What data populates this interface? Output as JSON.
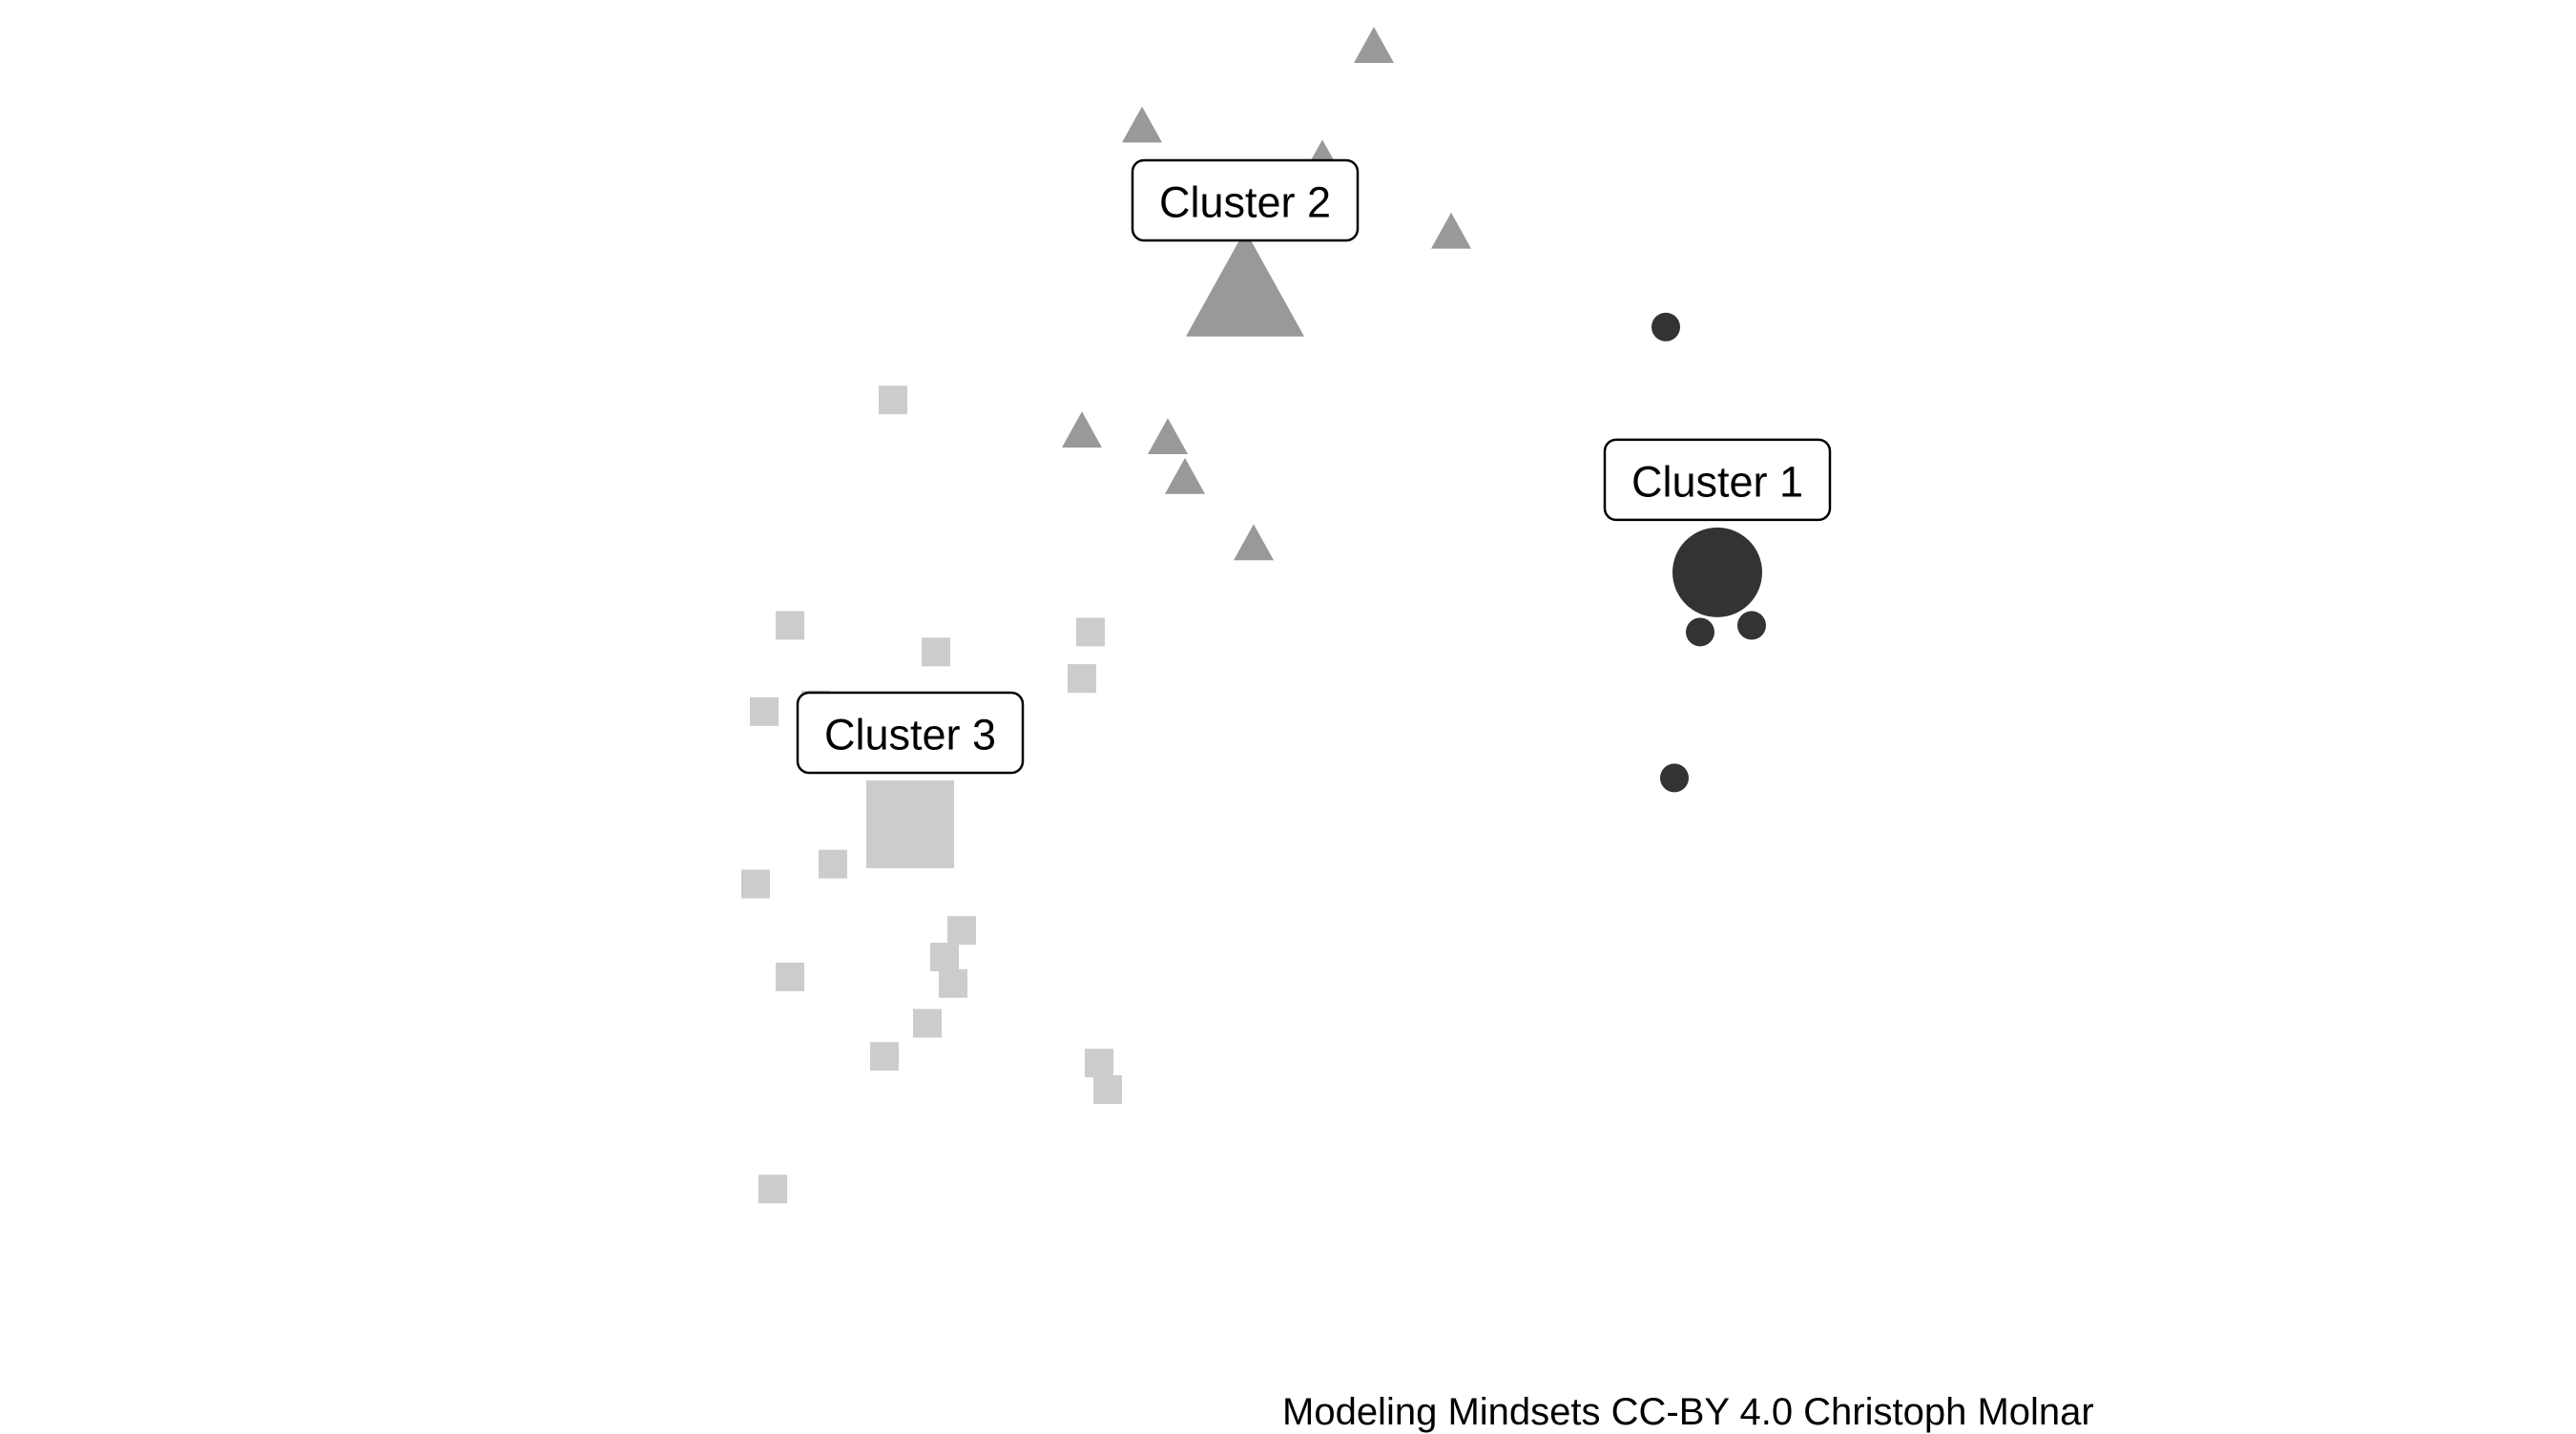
{
  "chart_data": {
    "type": "scatter",
    "title": "",
    "xlabel": "",
    "ylabel": "",
    "xlim": [
      0,
      100
    ],
    "ylim": [
      0,
      100
    ],
    "grid": false,
    "axes_visible": false,
    "legend": "none",
    "series": [
      {
        "label": "Cluster 1",
        "marker": "circle",
        "color": "#333333",
        "centroid": {
          "x": 75.0,
          "y": 59.0
        },
        "points": [
          {
            "x": 72.0,
            "y": 77.5
          },
          {
            "x": 79.0,
            "y": 67.0
          },
          {
            "x": 77.0,
            "y": 55.0
          },
          {
            "x": 74.0,
            "y": 54.5
          },
          {
            "x": 72.5,
            "y": 43.5
          }
        ]
      },
      {
        "label": "Cluster 2",
        "marker": "triangle",
        "color": "#999999",
        "centroid": {
          "x": 47.5,
          "y": 80.0
        },
        "points": [
          {
            "x": 55.0,
            "y": 98.5
          },
          {
            "x": 41.5,
            "y": 92.5
          },
          {
            "x": 52.0,
            "y": 90.0
          },
          {
            "x": 59.5,
            "y": 84.5
          },
          {
            "x": 38.0,
            "y": 69.5
          },
          {
            "x": 43.0,
            "y": 69.0
          },
          {
            "x": 44.0,
            "y": 66.0
          },
          {
            "x": 48.0,
            "y": 61.0
          }
        ]
      },
      {
        "label": "Cluster 3",
        "marker": "square",
        "color": "#cccccc",
        "centroid": {
          "x": 28.0,
          "y": 40.0
        },
        "points": [
          {
            "x": 27.0,
            "y": 72.0
          },
          {
            "x": 21.0,
            "y": 55.0
          },
          {
            "x": 29.5,
            "y": 53.0
          },
          {
            "x": 38.5,
            "y": 54.5
          },
          {
            "x": 38.0,
            "y": 51.0
          },
          {
            "x": 19.5,
            "y": 48.5
          },
          {
            "x": 22.5,
            "y": 49.0
          },
          {
            "x": 23.0,
            "y": 46.5
          },
          {
            "x": 23.5,
            "y": 37.0
          },
          {
            "x": 19.0,
            "y": 35.5
          },
          {
            "x": 31.0,
            "y": 32.0
          },
          {
            "x": 30.0,
            "y": 30.0
          },
          {
            "x": 30.5,
            "y": 28.0
          },
          {
            "x": 21.0,
            "y": 28.5
          },
          {
            "x": 29.0,
            "y": 25.0
          },
          {
            "x": 26.5,
            "y": 22.5
          },
          {
            "x": 39.0,
            "y": 22.0
          },
          {
            "x": 39.5,
            "y": 20.0
          },
          {
            "x": 20.0,
            "y": 12.5
          }
        ]
      }
    ]
  },
  "caption": "Modeling Mindsets CC-BY 4.0 Christoph Molnar"
}
